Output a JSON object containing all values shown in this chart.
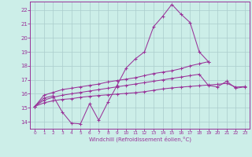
{
  "title": "",
  "xlabel": "Windchill (Refroidissement éolien,°C)",
  "bg_color": "#cceee8",
  "grid_color": "#aacccc",
  "line_color": "#993399",
  "xlim": [
    -0.5,
    23.5
  ],
  "ylim": [
    13.5,
    22.6
  ],
  "xticks": [
    0,
    1,
    2,
    3,
    4,
    5,
    6,
    7,
    8,
    9,
    10,
    11,
    12,
    13,
    14,
    15,
    16,
    17,
    18,
    19,
    20,
    21,
    22,
    23
  ],
  "yticks": [
    14,
    15,
    16,
    17,
    18,
    19,
    20,
    21,
    22
  ],
  "series": [
    [
      15.1,
      15.7,
      15.85,
      14.7,
      13.9,
      13.85,
      15.3,
      14.1,
      15.4,
      16.6,
      17.85,
      18.5,
      19.0,
      20.8,
      21.55,
      22.4,
      21.7,
      21.1,
      19.0,
      18.3,
      null,
      null,
      null,
      null
    ],
    [
      15.1,
      15.9,
      16.1,
      16.3,
      16.4,
      16.5,
      16.6,
      16.7,
      16.85,
      16.95,
      17.05,
      17.15,
      17.3,
      17.45,
      17.55,
      17.65,
      17.8,
      18.0,
      18.15,
      18.3,
      null,
      null,
      null,
      null
    ],
    [
      15.1,
      15.55,
      15.75,
      15.9,
      16.0,
      16.1,
      16.2,
      16.3,
      16.4,
      16.5,
      16.6,
      16.7,
      16.8,
      16.9,
      17.0,
      17.1,
      17.2,
      17.3,
      17.4,
      16.6,
      16.5,
      16.9,
      16.4,
      16.5
    ],
    [
      15.1,
      15.35,
      15.5,
      15.6,
      15.65,
      15.75,
      15.82,
      15.88,
      15.93,
      15.98,
      16.03,
      16.08,
      16.15,
      16.25,
      16.35,
      16.42,
      16.48,
      16.53,
      16.58,
      16.63,
      16.68,
      16.75,
      16.48,
      16.52
    ]
  ]
}
